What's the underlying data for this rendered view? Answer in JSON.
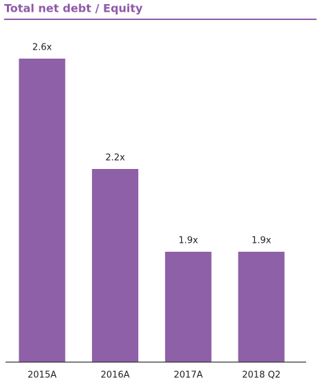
{
  "chart_data": {
    "type": "bar",
    "title": "Total net debt /  Equity",
    "categories": [
      "2015A",
      "2016A",
      "2017A",
      "2018 Q2"
    ],
    "values": [
      2.6,
      2.2,
      1.9,
      1.9
    ],
    "value_labels": [
      "2.6x",
      "2.2x",
      "1.9x",
      "1.9x"
    ],
    "color": "#8e60a8",
    "ylim": [
      1.5,
      2.6
    ]
  }
}
